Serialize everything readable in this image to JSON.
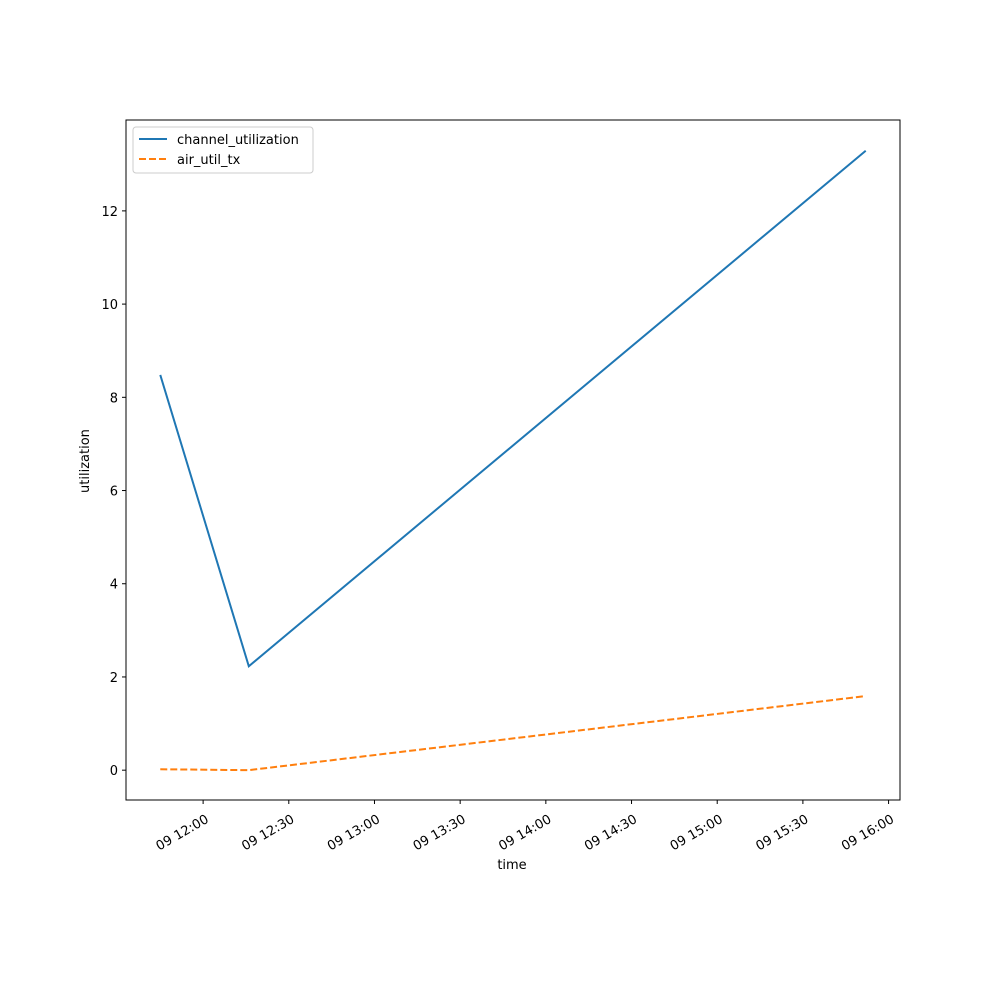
{
  "chart_data": {
    "type": "line",
    "x_label": "time",
    "y_label": "utilization",
    "x": [
      "09 11:45",
      "09 12:16",
      "09 15:52"
    ],
    "series": [
      {
        "name": "channel_utilization",
        "color": "#1f77b4",
        "dash": "solid",
        "values": [
          8.48,
          2.23,
          13.29
        ]
      },
      {
        "name": "air_util_tx",
        "color": "#ff7f0e",
        "dash": "dashed",
        "values": [
          0.02,
          0.0,
          1.59
        ]
      }
    ],
    "xlim": [
      "09 11:33",
      "09 16:04"
    ],
    "xticks": [
      "09 12:00",
      "09 12:30",
      "09 13:00",
      "09 13:30",
      "09 14:00",
      "09 14:30",
      "09 15:00",
      "09 15:30",
      "09 16:00"
    ],
    "ylim": [
      -0.64,
      13.95
    ],
    "yticks": [
      0,
      2,
      4,
      6,
      8,
      10,
      12
    ],
    "legend": "upper left",
    "grid": false
  }
}
